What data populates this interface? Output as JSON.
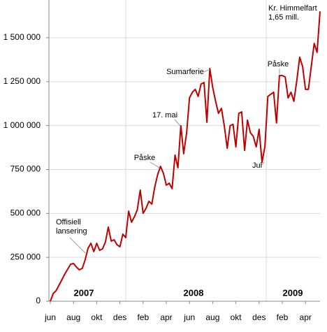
{
  "chart_data": {
    "type": "line",
    "categories": [
      "jun",
      null,
      null,
      null,
      null,
      null,
      null,
      null,
      "aug",
      null,
      null,
      null,
      null,
      null,
      null,
      null,
      "okt",
      null,
      null,
      null,
      null,
      null,
      null,
      null,
      "des",
      null,
      null,
      null,
      null,
      null,
      null,
      null,
      "feb",
      null,
      null,
      null,
      null,
      null,
      null,
      null,
      "apr",
      null,
      null,
      null,
      null,
      null,
      null,
      null,
      "jun",
      null,
      null,
      null,
      null,
      null,
      null,
      null,
      "aug",
      null,
      null,
      null,
      null,
      null,
      null,
      null,
      "okt",
      null,
      null,
      null,
      null,
      null,
      null,
      null,
      "des",
      null,
      null,
      null,
      null,
      null,
      null,
      null,
      "feb",
      null,
      null,
      null,
      null,
      null,
      null,
      null,
      "apr",
      null,
      null,
      null,
      null,
      null
    ],
    "values": [
      0,
      44000,
      60000,
      92000,
      123000,
      155000,
      183000,
      211000,
      215000,
      195000,
      179000,
      187000,
      235000,
      302000,
      330000,
      283000,
      330000,
      290000,
      298000,
      338000,
      422000,
      342000,
      350000,
      322000,
      310000,
      382000,
      362000,
      513000,
      450000,
      481000,
      521000,
      633000,
      501000,
      529000,
      569000,
      553000,
      649000,
      720000,
      768000,
      728000,
      661000,
      672000,
      641000,
      832000,
      760000,
      999000,
      840000,
      959000,
      1158000,
      1190000,
      1206000,
      1166000,
      1237000,
      1245000,
      1019000,
      1325000,
      1218000,
      1138000,
      1070000,
      1098000,
      999000,
      871000,
      999000,
      1007000,
      879000,
      1070000,
      1078000,
      859000,
      1031000,
      959000,
      939000,
      879000,
      979000,
      792000,
      879000,
      1166000,
      1178000,
      1190000,
      1015000,
      1285000,
      1285000,
      1277000,
      1158000,
      1190000,
      1138000,
      1257000,
      1389000,
      1337000,
      1206000,
      1206000,
      1337000,
      1468000,
      1417000,
      1650000
    ],
    "color": "#c00000",
    "ylim": [
      0,
      1700000
    ],
    "yticks": [
      0,
      {
        "value": 250000,
        "label": "250 000"
      },
      {
        "value": 500000,
        "label": "500 000"
      },
      {
        "value": 750000,
        "label": "750 000"
      },
      {
        "value": 1000000,
        "label": "1 000 000"
      },
      {
        "value": 1250000,
        "label": "1 250 000"
      },
      {
        "value": 1500000,
        "label": "1 500 000"
      }
    ],
    "grid": true,
    "years": [
      "2007",
      "2008",
      "2009"
    ],
    "annotations": [
      [
        "Offisiell",
        "lansering"
      ],
      [
        "Påske"
      ],
      [
        "17. mai"
      ],
      [
        "Sumarferie"
      ],
      [
        "Jul"
      ],
      [
        "Påske"
      ],
      [
        "Kr. Himmelfart",
        "1,65 mill."
      ]
    ]
  }
}
